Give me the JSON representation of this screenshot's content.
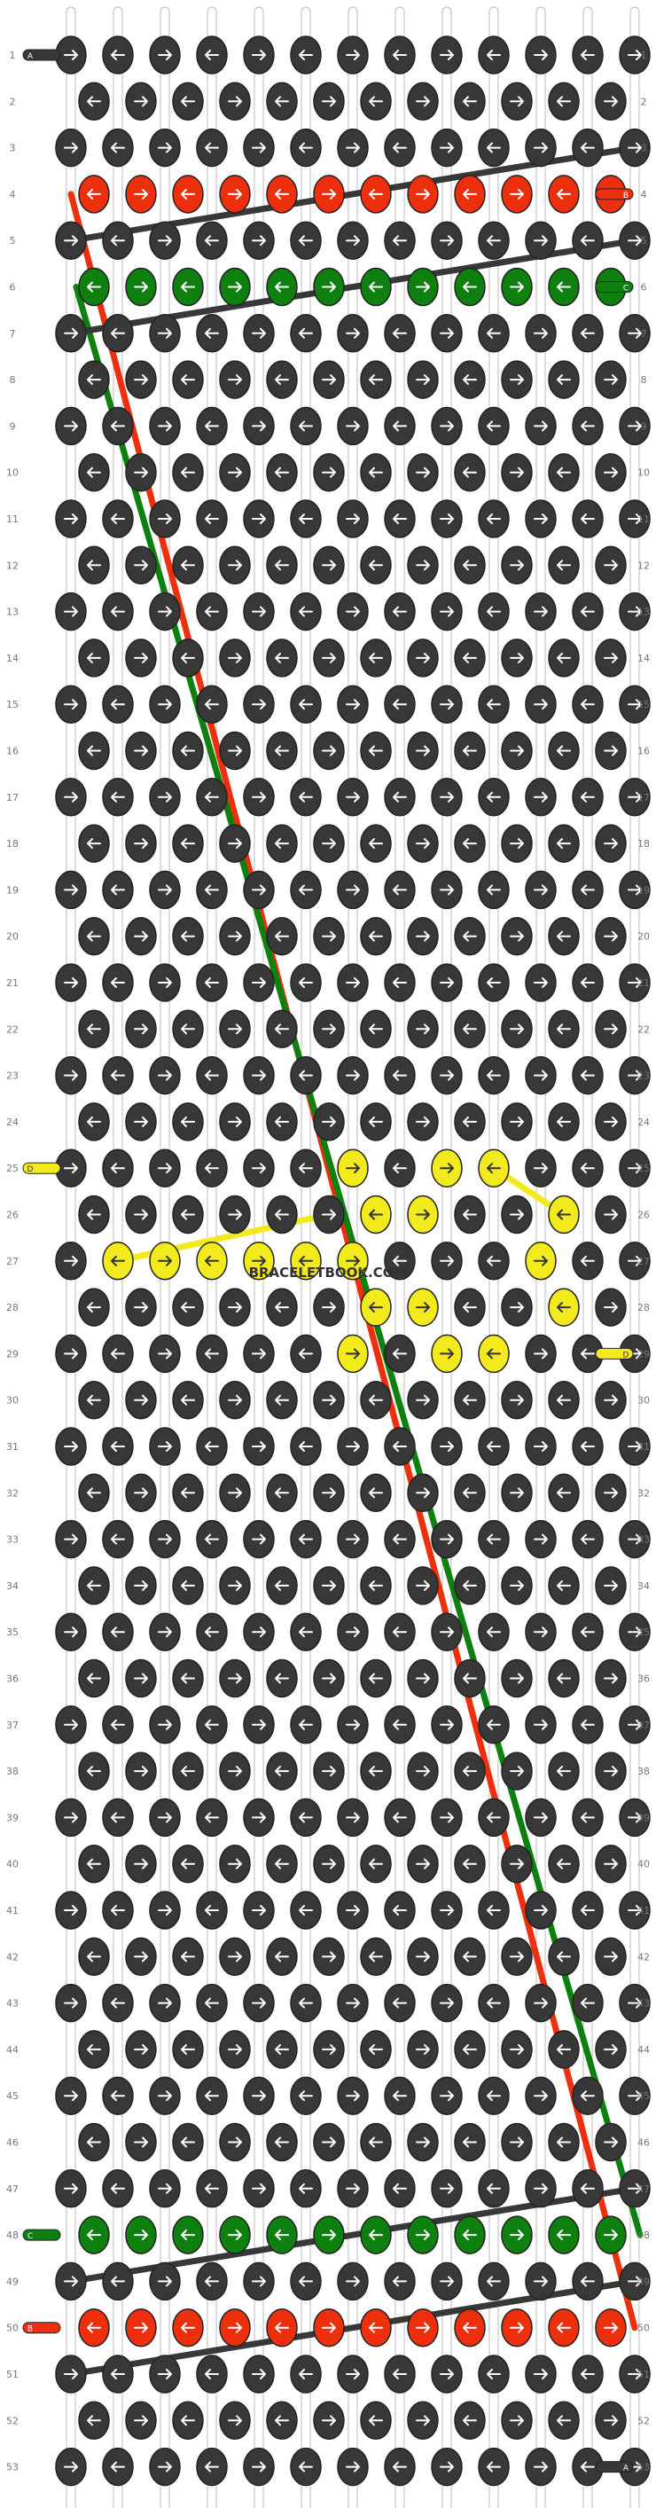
{
  "watermark": "BRACELETBOOK.COM",
  "rows": 53,
  "columns": 12,
  "strings": 13,
  "colors": {
    "A": "#383838",
    "B": "#ee2f0e",
    "C": "#0e8010",
    "D": "#f2ea1c"
  },
  "string_letters": [
    "A",
    "B",
    "C",
    "D"
  ],
  "pattern_rows": {
    "4": "B",
    "6": "C",
    "48": "C",
    "50": "B"
  },
  "yellow_knots": [
    {
      "row": 25,
      "cols": [
        6,
        8,
        9
      ]
    },
    {
      "row": 26,
      "cols": [
        6,
        7,
        10
      ]
    },
    {
      "row": 27,
      "cols": [
        1,
        2,
        3,
        4,
        5,
        6,
        10
      ]
    },
    {
      "row": 28,
      "cols": [
        6,
        7,
        10
      ]
    },
    {
      "row": 29,
      "cols": [
        6,
        8,
        9
      ]
    }
  ],
  "side_labels": {
    "left_start": {
      "row": 1,
      "letter": "A"
    },
    "right_end": {
      "row": 53,
      "letter": "A"
    },
    "left_b": {
      "row": 50,
      "letter": "B"
    },
    "right_b": {
      "row": 4,
      "letter": "B"
    },
    "left_c": {
      "row": 48,
      "letter": "C"
    },
    "right_c": {
      "row": 6,
      "letter": "C"
    },
    "left_d": {
      "row": 25,
      "letter": "D"
    },
    "right_d": {
      "row": 29,
      "letter": "D"
    }
  }
}
